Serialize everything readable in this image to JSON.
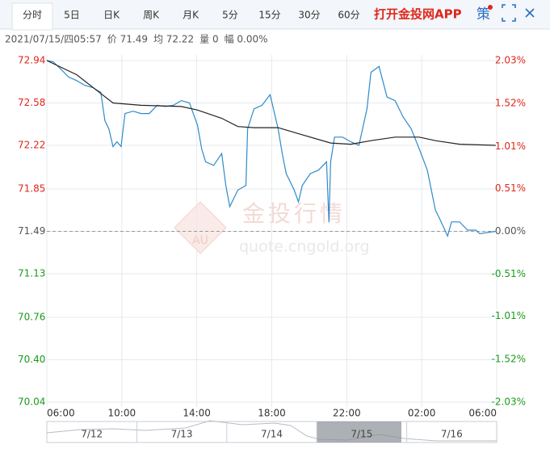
{
  "toolbar": {
    "tabs": [
      "分时",
      "5日",
      "日K",
      "周K",
      "月K",
      "5分",
      "15分",
      "30分",
      "60分"
    ],
    "app_link": "打开金投网APP",
    "strategy": "策"
  },
  "info": [
    "2021/07/15/四05:57",
    "价 71.49",
    "均 72.22",
    "量 0",
    "幅 0.00%"
  ],
  "watermark": {
    "logo": "AU",
    "name": "金投行情",
    "url": "quote.cngold.org"
  },
  "navigator": {
    "dates": [
      "7/12",
      "7/13",
      "7/14",
      "7/15",
      "7/16"
    ]
  },
  "chart_data": {
    "type": "line",
    "xlim": [
      0,
      24
    ],
    "xticks": [
      {
        "value": 0,
        "label": "06:00"
      },
      {
        "value": 4,
        "label": "10:00"
      },
      {
        "value": 8,
        "label": "14:00"
      },
      {
        "value": 12,
        "label": "18:00"
      },
      {
        "value": 16,
        "label": "22:00"
      },
      {
        "value": 20,
        "label": "02:00"
      },
      {
        "value": 24,
        "label": "06:00"
      }
    ],
    "ylim": [
      70.04,
      72.94
    ],
    "yticks": [
      70.04,
      {
        "value": 70.4,
        "label": "70.40"
      },
      70.76,
      71.13,
      71.49,
      71.85,
      72.22,
      72.58,
      72.94
    ],
    "y2lim": [
      -2.03,
      2.03
    ],
    "y2ticks": [
      {
        "value": -2.03,
        "label": "-2.03%"
      },
      {
        "value": -1.52,
        "label": "-1.52%"
      },
      {
        "value": -1.01,
        "label": "-1.01%"
      },
      {
        "value": -0.51,
        "label": "-0.51%"
      },
      {
        "value": 0,
        "label": "0.00%"
      },
      {
        "value": 0.51,
        "label": "0.51%"
      },
      {
        "value": 1.01,
        "label": "1.01%"
      },
      {
        "value": 1.52,
        "label": "1.52%"
      },
      {
        "value": 2.03,
        "label": "2.03%"
      }
    ],
    "baseline": 71.49,
    "grid": true,
    "up_color": "#e0271b",
    "down_color": "#1a9b1a",
    "flat_color": "#555555",
    "series": [
      {
        "color": "#2e8bc9",
        "x": [
          0,
          0.34,
          0.73,
          1.16,
          1.59,
          2.02,
          2.45,
          2.88,
          3.1,
          3.31,
          3.53,
          3.74,
          3.96,
          4.17,
          4.6,
          5.03,
          5.46,
          5.89,
          6.32,
          6.75,
          7.18,
          7.61,
          8.04,
          8.26,
          8.47,
          8.9,
          9.33,
          9.55,
          9.76,
          10.19,
          10.62,
          10.71,
          11.05,
          11.48,
          11.91,
          12.34,
          12.56,
          12.77,
          13.2,
          13.42,
          13.63,
          14.06,
          14.49,
          14.92,
          15.05,
          15.14,
          15.35,
          15.78,
          16.22,
          16.65,
          17.08,
          17.29,
          17.72,
          18.15,
          18.58,
          19.01,
          19.44,
          19.87,
          20.3,
          20.73,
          20.95,
          21.38,
          21.59,
          22.02,
          22.45,
          22.88,
          23.1,
          23.95
        ],
        "values": [
          72.94,
          72.93,
          72.87,
          72.8,
          72.77,
          72.73,
          72.71,
          72.67,
          72.43,
          72.36,
          72.21,
          72.25,
          72.21,
          72.49,
          72.51,
          72.49,
          72.49,
          72.56,
          72.55,
          72.56,
          72.6,
          72.58,
          72.39,
          72.19,
          72.08,
          72.05,
          72.15,
          71.88,
          71.7,
          71.84,
          71.88,
          72.36,
          72.53,
          72.56,
          72.65,
          72.36,
          72.15,
          71.98,
          71.84,
          71.74,
          71.88,
          71.98,
          72.01,
          72.08,
          71.57,
          72.08,
          72.29,
          72.29,
          72.25,
          72.22,
          72.53,
          72.84,
          72.89,
          72.63,
          72.6,
          72.46,
          72.36,
          72.19,
          72.01,
          71.67,
          71.6,
          71.45,
          71.57,
          71.57,
          71.5,
          71.5,
          71.47,
          71.49
        ]
      },
      {
        "color": "#222222",
        "x": [
          0,
          1.59,
          2.88,
          3.53,
          5.03,
          7.18,
          8.04,
          9.33,
          10.19,
          11.05,
          12.34,
          13.63,
          15.14,
          16.22,
          17.29,
          18.58,
          19.87,
          20.73,
          22.02,
          23.95
        ],
        "values": [
          72.94,
          72.82,
          72.66,
          72.58,
          72.56,
          72.55,
          72.52,
          72.45,
          72.38,
          72.37,
          72.37,
          72.31,
          72.24,
          72.23,
          72.26,
          72.29,
          72.29,
          72.26,
          72.23,
          72.22
        ]
      }
    ]
  }
}
